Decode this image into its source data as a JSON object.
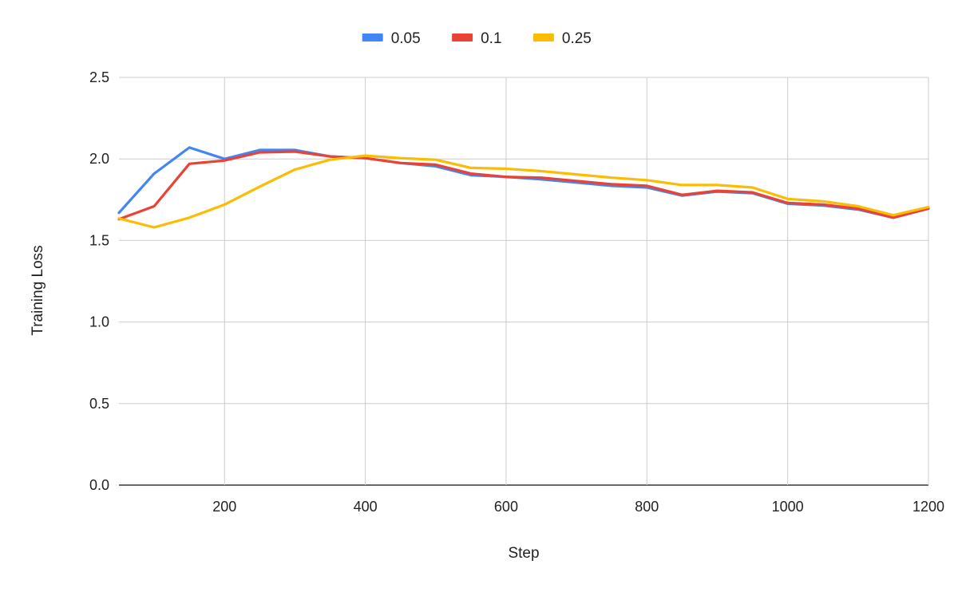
{
  "chart_data": {
    "type": "line",
    "title": "",
    "xlabel": "Step",
    "ylabel": "Training Loss",
    "xlim": [
      50,
      1200
    ],
    "ylim": [
      0,
      2.5
    ],
    "x_ticks": [
      200,
      400,
      600,
      800,
      1000,
      1200
    ],
    "y_ticks": [
      "0.0",
      "0.5",
      "1.0",
      "1.5",
      "2.0",
      "2.5"
    ],
    "grid": true,
    "legend_position": "top",
    "x": [
      50,
      100,
      150,
      200,
      250,
      300,
      350,
      400,
      450,
      500,
      550,
      600,
      650,
      700,
      750,
      800,
      850,
      900,
      950,
      1000,
      1050,
      1100,
      1150,
      1200
    ],
    "series": [
      {
        "name": "0.05",
        "color": "#4285F4",
        "values": [
          1.67,
          1.91,
          2.07,
          2.0,
          2.055,
          2.055,
          2.015,
          2.005,
          1.975,
          1.955,
          1.9,
          1.89,
          1.875,
          1.855,
          1.835,
          1.825,
          1.775,
          1.8,
          1.79,
          1.725,
          1.715,
          1.69,
          1.64,
          1.695
        ]
      },
      {
        "name": "0.1",
        "color": "#EA4335",
        "values": [
          1.63,
          1.71,
          1.97,
          1.99,
          2.04,
          2.045,
          2.015,
          2.005,
          1.975,
          1.965,
          1.91,
          1.89,
          1.885,
          1.865,
          1.845,
          1.835,
          1.78,
          1.805,
          1.795,
          1.73,
          1.72,
          1.695,
          1.64,
          1.695
        ]
      },
      {
        "name": "0.25",
        "color": "#FBBC04",
        "values": [
          1.635,
          1.58,
          1.64,
          1.72,
          1.83,
          1.935,
          1.995,
          2.02,
          2.005,
          1.995,
          1.945,
          1.94,
          1.925,
          1.905,
          1.885,
          1.87,
          1.84,
          1.84,
          1.825,
          1.755,
          1.74,
          1.71,
          1.655,
          1.705
        ]
      }
    ]
  }
}
